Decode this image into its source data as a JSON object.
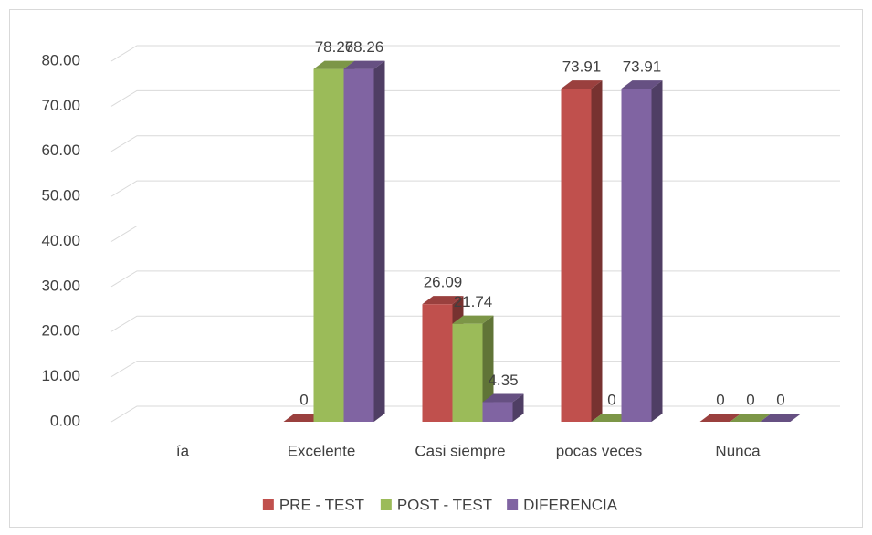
{
  "chart_data": {
    "type": "bar3d",
    "categories": [
      "ía",
      "Excelente",
      "Casi siempre",
      "pocas veces",
      "Nunca"
    ],
    "series": [
      {
        "name": "PRE - TEST",
        "color": "#c0504d",
        "values": [
          null,
          0,
          26.09,
          73.91,
          0
        ]
      },
      {
        "name": "POST - TEST",
        "color": "#9bbb59",
        "values": [
          null,
          78.26,
          21.74,
          0,
          0
        ]
      },
      {
        "name": "DIFERENCIA",
        "color": "#8064a2",
        "values": [
          null,
          78.26,
          4.35,
          73.91,
          0
        ]
      }
    ],
    "ylim": [
      0,
      80
    ],
    "yticks": [
      {
        "value": 0,
        "label": "0.00"
      },
      {
        "value": 10,
        "label": "10.00"
      },
      {
        "value": 20,
        "label": "20.00"
      },
      {
        "value": 30,
        "label": "30.00"
      },
      {
        "value": 40,
        "label": "40.00"
      },
      {
        "value": 50,
        "label": "50.00"
      },
      {
        "value": 60,
        "label": "60.00"
      },
      {
        "value": 70,
        "label": "70.00"
      },
      {
        "value": 80,
        "label": "80.00"
      }
    ],
    "grid": true,
    "legend": "bottom"
  }
}
